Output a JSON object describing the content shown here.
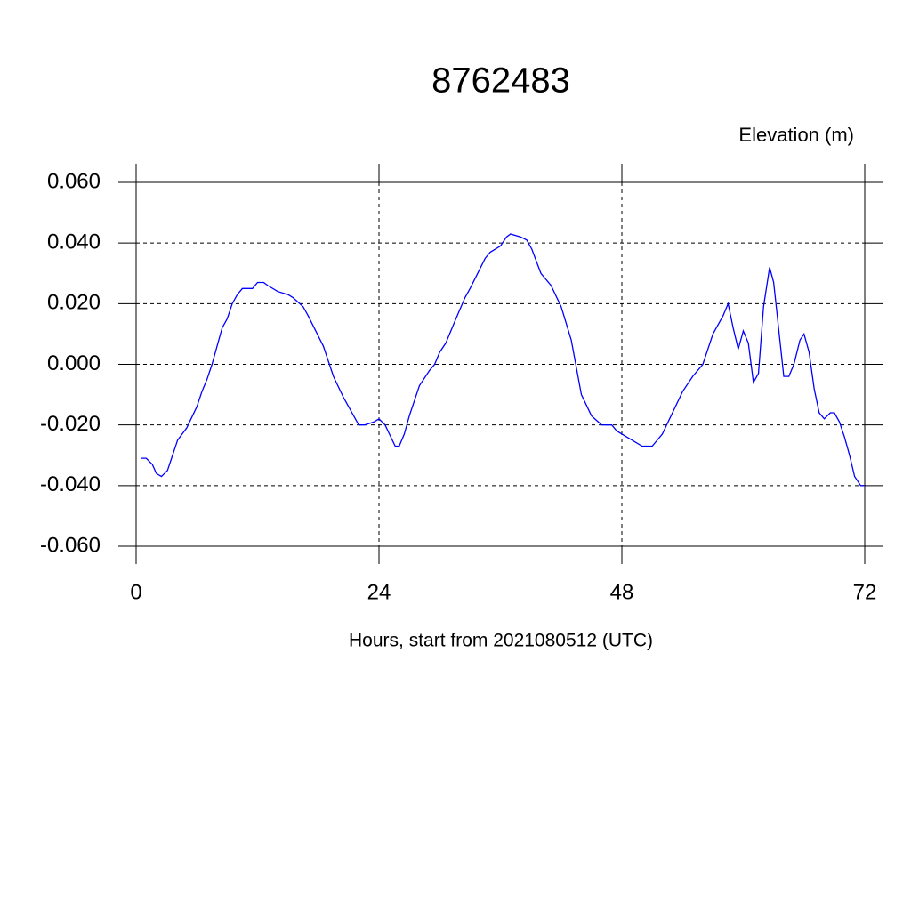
{
  "chart_data": {
    "type": "line",
    "title": "8762483",
    "subtitle": "Elevation (m)",
    "x_label": "Hours, start from 2021080512 (UTC)",
    "x": [
      0.5,
      1,
      1.6,
      2,
      2.5,
      3.1,
      3.6,
      4.1,
      5,
      6,
      6.5,
      7,
      7.5,
      8,
      8.5,
      9,
      9.5,
      10,
      10.5,
      11.5,
      12,
      12.6,
      13,
      14,
      15,
      15.5,
      16.5,
      17,
      17.6,
      18.5,
      19.5,
      20.5,
      21.5,
      22,
      22.6,
      23.5,
      24,
      24.6,
      25.6,
      26,
      26.5,
      27,
      28,
      28.6,
      29,
      29.5,
      30,
      30.6,
      31.6,
      32.5,
      33,
      33.6,
      34.5,
      35,
      36,
      36.6,
      37,
      38,
      38.6,
      39.1,
      40,
      41,
      42,
      43,
      44,
      45,
      46,
      47,
      47.5,
      48,
      49,
      50,
      51,
      52,
      53,
      54,
      55,
      56,
      56.5,
      57,
      58,
      58.5,
      59,
      59.5,
      60,
      60.5,
      61,
      61.5,
      62,
      62.6,
      63,
      64,
      64.5,
      65,
      65.6,
      66,
      66.5,
      67,
      67.5,
      68,
      68.6,
      69,
      69.5,
      70,
      70.5,
      71,
      71.6,
      72
    ],
    "series": [
      {
        "name": "Elevation",
        "color": "#0000ff",
        "values": [
          -0.031,
          -0.031,
          -0.033,
          -0.036,
          -0.037,
          -0.035,
          -0.03,
          -0.025,
          -0.021,
          -0.014,
          -0.009,
          -0.005,
          0.0,
          0.006,
          0.012,
          0.015,
          0.02,
          0.023,
          0.025,
          0.025,
          0.027,
          0.027,
          0.026,
          0.024,
          0.023,
          0.022,
          0.019,
          0.016,
          0.012,
          0.006,
          -0.004,
          -0.011,
          -0.017,
          -0.02,
          -0.02,
          -0.019,
          -0.018,
          -0.02,
          -0.027,
          -0.027,
          -0.023,
          -0.017,
          -0.007,
          -0.004,
          -0.002,
          0.0,
          0.004,
          0.007,
          0.015,
          0.022,
          0.025,
          0.029,
          0.035,
          0.037,
          0.039,
          0.042,
          0.043,
          0.042,
          0.041,
          0.038,
          0.03,
          0.026,
          0.019,
          0.008,
          -0.01,
          -0.017,
          -0.02,
          -0.02,
          -0.022,
          -0.023,
          -0.025,
          -0.027,
          -0.027,
          -0.023,
          -0.016,
          -0.009,
          -0.004,
          0.0,
          0.005,
          0.01,
          0.016,
          0.02,
          0.012,
          0.005,
          0.011,
          0.007,
          -0.006,
          -0.003,
          0.019,
          0.032,
          0.027,
          -0.004,
          -0.004,
          0.0,
          0.008,
          0.01,
          0.004,
          -0.008,
          -0.016,
          -0.018,
          -0.016,
          -0.016,
          -0.019,
          -0.024,
          -0.03,
          -0.037,
          -0.04,
          -0.04
        ]
      }
    ],
    "xlim": [
      0,
      72
    ],
    "xticks": [
      0,
      24,
      48,
      72
    ],
    "ylim": [
      -0.06,
      0.06
    ],
    "yticks": [
      {
        "value": -0.06,
        "label": "-0.060"
      },
      {
        "value": -0.04,
        "label": "-0.040"
      },
      {
        "value": -0.02,
        "label": "-0.020"
      },
      {
        "value": 0,
        "label": "0.000"
      },
      {
        "value": 0.02,
        "label": "0.020"
      },
      {
        "value": 0.04,
        "label": "0.040"
      },
      {
        "value": 0.06,
        "label": "0.060"
      }
    ],
    "grid": true
  }
}
